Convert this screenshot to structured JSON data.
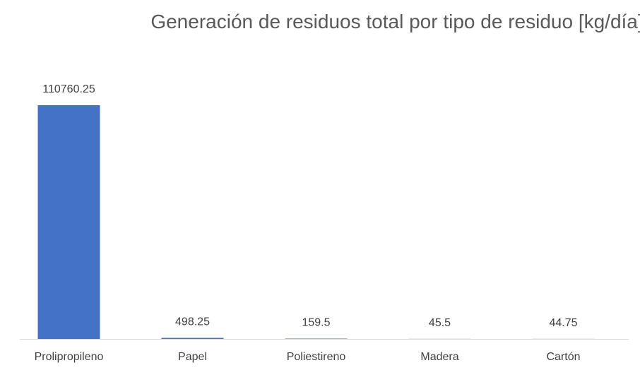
{
  "chart_data": {
    "type": "bar",
    "title": "Generación de residuos total por tipo de residuo [kg/día]",
    "categories": [
      "Prolipropileno",
      "Papel",
      "Poliestireno",
      "Madera",
      "Cartón"
    ],
    "values": [
      110760.25,
      498.25,
      159.5,
      45.5,
      44.75
    ],
    "color": "#4472c4",
    "grid": false
  }
}
